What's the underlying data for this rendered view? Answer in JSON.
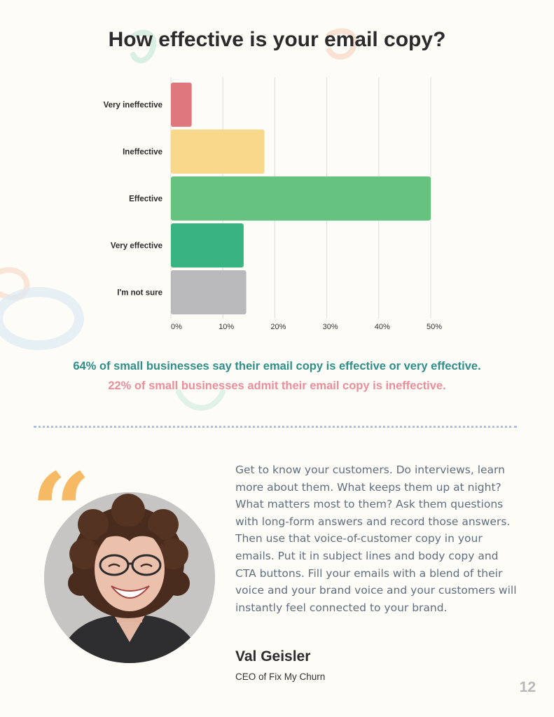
{
  "chart_data": {
    "type": "bar",
    "orientation": "horizontal",
    "title": "How effective is your email copy?",
    "categories": [
      "Very ineffective",
      "Ineffective",
      "Effective",
      "Very effective",
      "I'm not sure"
    ],
    "values": [
      4,
      18,
      50,
      14,
      14.5
    ],
    "colors": [
      "#df787e",
      "#f8d98b",
      "#66c27f",
      "#38b482",
      "#b9b8ba"
    ],
    "xlim": [
      0,
      50
    ],
    "xticks": [
      "0%",
      "10%",
      "20%",
      "30%",
      "40%",
      "50%"
    ],
    "xtick_values": [
      0,
      10,
      20,
      30,
      40,
      50
    ],
    "grid": true
  },
  "stats": {
    "line1": "64% of small businesses say their email copy is effective or very effective.",
    "line2": "22% of small businesses admit their email copy is ineffective.",
    "line1_color": "#2f8f88",
    "line2_color": "#ea8e9c"
  },
  "quote": {
    "mark": "“",
    "mark_color": "#f6ba64",
    "text": "Get to know your customers. Do interviews, learn more about them. What keeps them up at night? What matters most to them? Ask them questions with long-form answers and record those answers. Then use that voice-of-customer copy in your emails. Put it in subject lines and body copy and CTA buttons. Fill your emails with a blend of their voice and your brand voice and your customers will instantly feel connected to your brand.",
    "author_name": "Val Geisler",
    "author_title": "CEO of Fix My Churn"
  },
  "page_number": "12",
  "icons": {
    "avatar": "portrait-photo",
    "quote": "quote-mark-icon"
  }
}
